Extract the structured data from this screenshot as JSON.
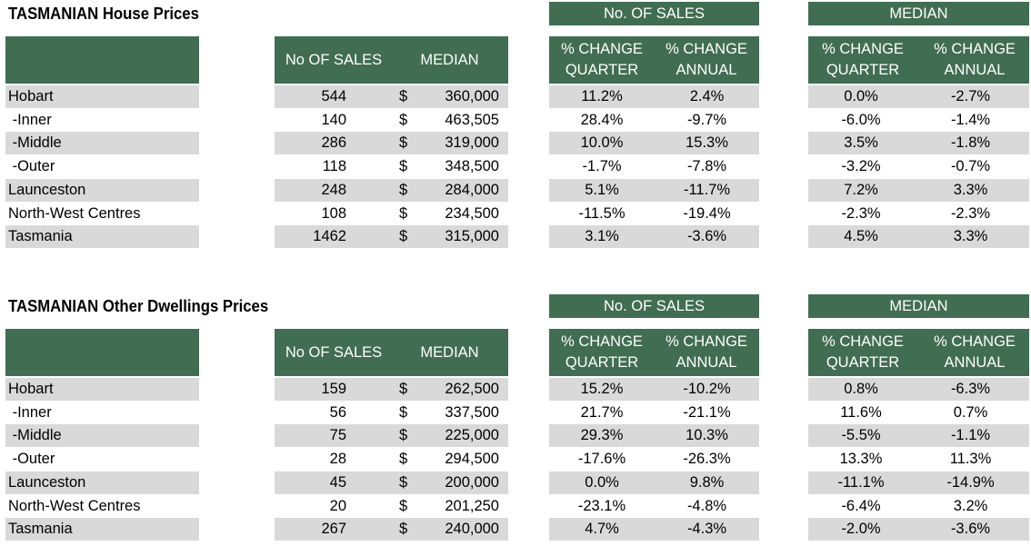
{
  "labels": {
    "no_of_sales_group": "No. OF SALES",
    "median_group": "MEDIAN",
    "no_of_sales_col": "No OF SALES",
    "median_col": "MEDIAN",
    "pct_change_quarter": "% CHANGE\nQUARTER",
    "pct_change_annual": "% CHANGE\nANNUAL",
    "currency": "$"
  },
  "tables": [
    {
      "title": "TASMANIAN House Prices",
      "rows": [
        {
          "region": "Hobart",
          "sales": "544",
          "median": "360,000",
          "sales_q": "11.2%",
          "sales_a": "2.4%",
          "median_q": "0.0%",
          "median_a": "-2.7%"
        },
        {
          "region": " -Inner",
          "sales": "140",
          "median": "463,505",
          "sales_q": "28.4%",
          "sales_a": "-9.7%",
          "median_q": "-6.0%",
          "median_a": "-1.4%"
        },
        {
          "region": " -Middle",
          "sales": "286",
          "median": "319,000",
          "sales_q": "10.0%",
          "sales_a": "15.3%",
          "median_q": "3.5%",
          "median_a": "-1.8%"
        },
        {
          "region": " -Outer",
          "sales": "118",
          "median": "348,500",
          "sales_q": "-1.7%",
          "sales_a": "-7.8%",
          "median_q": "-3.2%",
          "median_a": "-0.7%"
        },
        {
          "region": "Launceston",
          "sales": "248",
          "median": "284,000",
          "sales_q": "5.1%",
          "sales_a": "-11.7%",
          "median_q": "7.2%",
          "median_a": "3.3%"
        },
        {
          "region": "North-West Centres",
          "sales": "108",
          "median": "234,500",
          "sales_q": "-11.5%",
          "sales_a": "-19.4%",
          "median_q": "-2.3%",
          "median_a": "-2.3%"
        },
        {
          "region": "Tasmania",
          "sales": "1462",
          "median": "315,000",
          "sales_q": "3.1%",
          "sales_a": "-3.6%",
          "median_q": "4.5%",
          "median_a": "3.3%"
        }
      ]
    },
    {
      "title": "TASMANIAN Other Dwellings Prices",
      "rows": [
        {
          "region": "Hobart",
          "sales": "159",
          "median": "262,500",
          "sales_q": "15.2%",
          "sales_a": "-10.2%",
          "median_q": "0.8%",
          "median_a": "-6.3%"
        },
        {
          "region": " -Inner",
          "sales": "56",
          "median": "337,500",
          "sales_q": "21.7%",
          "sales_a": "-21.1%",
          "median_q": "11.6%",
          "median_a": "0.7%"
        },
        {
          "region": " -Middle",
          "sales": "75",
          "median": "225,000",
          "sales_q": "29.3%",
          "sales_a": "10.3%",
          "median_q": "-5.5%",
          "median_a": "-1.1%"
        },
        {
          "region": " -Outer",
          "sales": "28",
          "median": "294,500",
          "sales_q": "-17.6%",
          "sales_a": "-26.3%",
          "median_q": "13.3%",
          "median_a": "11.3%"
        },
        {
          "region": "Launceston",
          "sales": "45",
          "median": "200,000",
          "sales_q": "0.0%",
          "sales_a": "9.8%",
          "median_q": "-11.1%",
          "median_a": "-14.9%"
        },
        {
          "region": "North-West Centres",
          "sales": "20",
          "median": "201,250",
          "sales_q": "-23.1%",
          "sales_a": "-4.8%",
          "median_q": "-6.4%",
          "median_a": "3.2%"
        },
        {
          "region": "Tasmania",
          "sales": "267",
          "median": "240,000",
          "sales_q": "4.7%",
          "sales_a": "-4.3%",
          "median_q": "-2.0%",
          "median_a": "-3.6%"
        }
      ]
    }
  ]
}
